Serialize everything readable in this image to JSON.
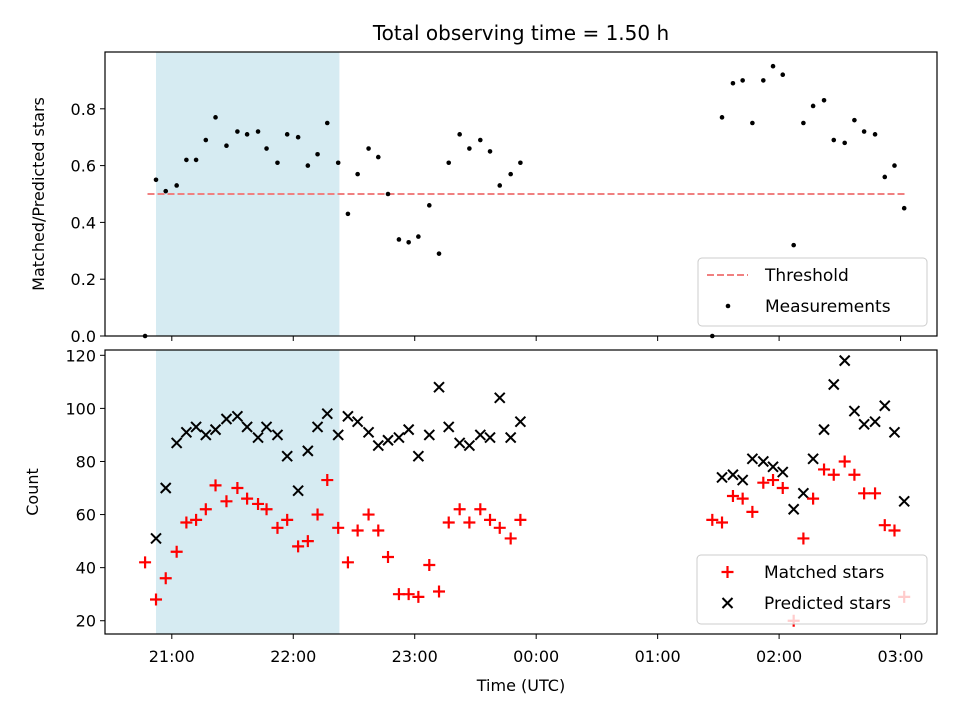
{
  "figure": {
    "title": "Total observing time = 1.50 h",
    "xlabel": "Time (UTC)",
    "xtick_labels": [
      "21:00",
      "22:00",
      "23:00",
      "00:00",
      "01:00",
      "02:00",
      "03:00"
    ]
  },
  "colors": {
    "threshold": "#f08080",
    "measurements": "#000000",
    "matched": "#ff0000",
    "predicted": "#000000",
    "shade": "#add8e6"
  },
  "chart_data": [
    {
      "type": "scatter",
      "ylabel": "Matched/Predicted stars",
      "x_unit": "hours since 21:00 UTC",
      "xlim": [
        -0.55,
        6.3
      ],
      "ylim": [
        0,
        1.0
      ],
      "yticks": [
        0.0,
        0.2,
        0.4,
        0.6,
        0.8
      ],
      "shaded_span": [
        -0.13,
        1.38
      ],
      "threshold": {
        "y": 0.5,
        "x_range": [
          -0.2,
          6.05
        ]
      },
      "legend": {
        "position": "lower right",
        "entries": [
          "Threshold",
          "Measurements"
        ]
      },
      "series": [
        {
          "name": "Measurements",
          "x": [
            -0.22,
            -0.13,
            -0.05,
            0.04,
            0.12,
            0.2,
            0.28,
            0.36,
            0.45,
            0.54,
            0.62,
            0.71,
            0.78,
            0.87,
            0.95,
            1.04,
            1.12,
            1.2,
            1.28,
            1.37,
            1.45,
            1.53,
            1.62,
            1.7,
            1.78,
            1.87,
            1.95,
            2.03,
            2.12,
            2.2,
            2.28,
            2.37,
            2.45,
            2.54,
            2.62,
            2.7,
            2.79,
            2.87,
            2.95,
            3.03,
            4.45,
            4.53,
            4.62,
            4.7,
            4.78,
            4.87,
            4.95,
            5.03,
            5.12,
            5.2,
            5.28,
            5.37,
            5.45,
            5.54,
            5.62,
            5.7,
            5.79,
            5.87,
            5.95,
            6.03
          ],
          "y": [
            0.0,
            0.55,
            0.51,
            0.53,
            0.62,
            0.62,
            0.69,
            0.77,
            0.67,
            0.72,
            0.71,
            0.72,
            0.66,
            0.61,
            0.71,
            0.7,
            0.6,
            0.64,
            0.75,
            0.61,
            0.43,
            0.57,
            0.66,
            0.63,
            0.5,
            0.34,
            0.33,
            0.35,
            0.46,
            0.29,
            0.61,
            0.71,
            0.66,
            0.69,
            0.65,
            0.53,
            0.57,
            0.61,
            null,
            null,
            0.0,
            0.77,
            0.89,
            0.9,
            0.75,
            0.9,
            0.95,
            0.92,
            0.32,
            0.75,
            0.81,
            0.83,
            0.69,
            0.68,
            0.76,
            0.72,
            0.71,
            0.56,
            0.6,
            0.45
          ]
        }
      ]
    },
    {
      "type": "scatter",
      "ylabel": "Count",
      "x_unit": "hours since 21:00 UTC",
      "xlim": [
        -0.55,
        6.3
      ],
      "ylim": [
        15,
        122
      ],
      "yticks": [
        20,
        40,
        60,
        80,
        100,
        120
      ],
      "shaded_span": [
        -0.13,
        1.38
      ],
      "legend": {
        "position": "lower right",
        "entries": [
          "Matched stars",
          "Predicted stars"
        ]
      },
      "series": [
        {
          "name": "Matched stars",
          "x": [
            -0.22,
            -0.13,
            -0.05,
            0.04,
            0.12,
            0.2,
            0.28,
            0.36,
            0.45,
            0.54,
            0.62,
            0.71,
            0.78,
            0.87,
            0.95,
            1.04,
            1.12,
            1.2,
            1.28,
            1.37,
            1.45,
            1.53,
            1.62,
            1.7,
            1.78,
            1.87,
            1.95,
            2.03,
            2.12,
            2.2,
            2.28,
            2.37,
            2.45,
            2.54,
            2.62,
            2.7,
            2.79,
            2.87,
            4.45,
            4.53,
            4.62,
            4.7,
            4.78,
            4.87,
            4.95,
            5.03,
            5.12,
            5.2,
            5.28,
            5.37,
            5.45,
            5.54,
            5.62,
            5.7,
            5.79,
            5.87,
            5.95,
            6.03
          ],
          "y": [
            42,
            28,
            36,
            46,
            57,
            58,
            62,
            71,
            65,
            70,
            66,
            64,
            62,
            55,
            58,
            48,
            50,
            60,
            73,
            55,
            42,
            54,
            60,
            54,
            44,
            30,
            30,
            29,
            41,
            31,
            57,
            62,
            57,
            62,
            58,
            55,
            51,
            58,
            58,
            57,
            67,
            66,
            61,
            72,
            73,
            70,
            20,
            51,
            66,
            77,
            75,
            80,
            75,
            68,
            68,
            56,
            54,
            29
          ]
        },
        {
          "name": "Predicted stars",
          "x": [
            -0.13,
            -0.05,
            0.04,
            0.12,
            0.2,
            0.28,
            0.36,
            0.45,
            0.54,
            0.62,
            0.71,
            0.78,
            0.87,
            0.95,
            1.04,
            1.12,
            1.2,
            1.28,
            1.37,
            1.45,
            1.53,
            1.62,
            1.7,
            1.78,
            1.87,
            1.95,
            2.03,
            2.12,
            2.2,
            2.28,
            2.37,
            2.45,
            2.54,
            2.62,
            2.7,
            2.79,
            2.87,
            4.53,
            4.62,
            4.7,
            4.78,
            4.87,
            4.95,
            5.03,
            5.12,
            5.2,
            5.28,
            5.37,
            5.45,
            5.54,
            5.62,
            5.7,
            5.79,
            5.87,
            5.95,
            6.03
          ],
          "y": [
            51,
            70,
            87,
            91,
            93,
            90,
            92,
            96,
            97,
            93,
            89,
            93,
            90,
            82,
            69,
            84,
            93,
            98,
            90,
            97,
            95,
            91,
            86,
            88,
            89,
            92,
            82,
            90,
            108,
            93,
            87,
            86,
            90,
            89,
            104,
            89,
            95,
            74,
            75,
            73,
            81,
            80,
            78,
            76,
            62,
            68,
            81,
            92,
            109,
            118,
            99,
            94,
            95,
            101,
            91,
            65
          ]
        }
      ]
    }
  ]
}
